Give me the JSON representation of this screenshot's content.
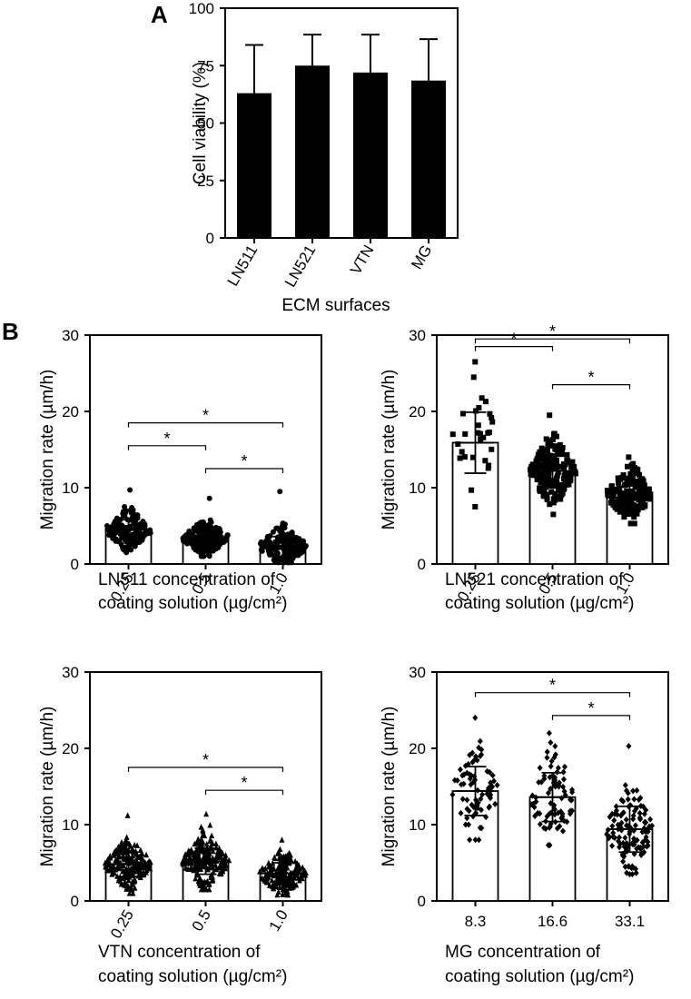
{
  "panel_labels": {
    "a": "A",
    "b": "B"
  },
  "chart_data": [
    {
      "id": "viability",
      "type": "bar",
      "title": "",
      "xlabel": "ECM surfaces",
      "ylabel": "Cell viability (%)",
      "ylim": [
        0,
        100
      ],
      "yticks": [
        "0",
        "25",
        "50",
        "75",
        "100"
      ],
      "categories": [
        "LN511",
        "LN521",
        "VTN",
        "MG"
      ],
      "values": [
        63,
        75,
        72,
        68.5
      ],
      "errors": [
        21,
        13.5,
        16.5,
        18
      ],
      "bar_color": "#000000",
      "grid": false
    },
    {
      "id": "ln511",
      "type": "scatter",
      "marker": "circle",
      "xlabel_lines": [
        "LN511 concentration of",
        "coating solution (µg/cm²)"
      ],
      "ylabel": "Migration rate (µm/h)",
      "ylim": [
        0,
        30
      ],
      "yticks": [
        "0",
        "10",
        "20",
        "30"
      ],
      "categories": [
        "0.25",
        "0.5",
        "1.0"
      ],
      "means": [
        4.5,
        3.4,
        2.3
      ],
      "sd": [
        1.3,
        1.1,
        1.3
      ],
      "spread": [
        [
          1.5,
          9.7
        ],
        [
          1.0,
          8.6
        ],
        [
          0.2,
          9.5
        ]
      ],
      "n_points": [
        170,
        200,
        170
      ],
      "significance": [
        {
          "from": 0,
          "to": 1,
          "y": 15.5,
          "label": "*"
        },
        {
          "from": 0,
          "to": 2,
          "y": 18.5,
          "label": "*"
        },
        {
          "from": 1,
          "to": 2,
          "y": 12.5,
          "label": "*"
        }
      ]
    },
    {
      "id": "ln521",
      "type": "scatter",
      "marker": "square",
      "xlabel_lines": [
        "LN521 concentration of",
        "coating solution (µg/cm²)"
      ],
      "ylabel": "Migration rate (µm/h)",
      "ylim": [
        0,
        30
      ],
      "yticks": [
        "0",
        "10",
        "20",
        "30"
      ],
      "categories": [
        "0.25",
        "0.5",
        "1.0"
      ],
      "means": [
        15.9,
        12.2,
        9.3
      ],
      "sd": [
        4.0,
        2.2,
        1.8
      ],
      "spread": [
        [
          7.5,
          26.5
        ],
        [
          6.5,
          19.5
        ],
        [
          5.3,
          14.0
        ]
      ],
      "n_points": [
        30,
        190,
        160
      ],
      "significance": [
        {
          "from": 0,
          "to": 1,
          "y": 28.5,
          "label": "*"
        },
        {
          "from": 0,
          "to": 2,
          "y": 29.5,
          "label": "*"
        },
        {
          "from": 1,
          "to": 2,
          "y": 23.5,
          "label": "*"
        }
      ]
    },
    {
      "id": "vtn",
      "type": "scatter",
      "marker": "triangle",
      "xlabel_lines": [
        "VTN concentration of",
        "coating solution (µg/cm²)"
      ],
      "ylabel": "Migration rate (µm/h)",
      "ylim": [
        0,
        30
      ],
      "yticks": [
        "0",
        "10",
        "20",
        "30"
      ],
      "categories": [
        "0.25",
        "0.5",
        "1.0"
      ],
      "means": [
        4.8,
        5.2,
        3.6
      ],
      "sd": [
        1.6,
        1.7,
        1.4
      ],
      "spread": [
        [
          1.0,
          11.2
        ],
        [
          1.5,
          11.4
        ],
        [
          0.8,
          8.0
        ]
      ],
      "n_points": [
        200,
        220,
        190
      ],
      "significance": [
        {
          "from": 0,
          "to": 2,
          "y": 17.5,
          "label": "*"
        },
        {
          "from": 1,
          "to": 2,
          "y": 14.5,
          "label": "*"
        }
      ]
    },
    {
      "id": "mg",
      "type": "scatter",
      "marker": "diamond",
      "xlabel_lines": [
        "MG concentration of",
        "coating solution (µg/cm²)"
      ],
      "ylabel": "Migration rate (µm/h)",
      "ylim": [
        0,
        30
      ],
      "yticks": [
        "0",
        "10",
        "20",
        "30"
      ],
      "categories": [
        "8.3",
        "16.6",
        "33.1"
      ],
      "means": [
        14.4,
        13.6,
        9.4
      ],
      "sd": [
        3.2,
        3.2,
        3.0
      ],
      "spread": [
        [
          8.0,
          24.0
        ],
        [
          7.3,
          22.0
        ],
        [
          3.5,
          20.3
        ]
      ],
      "n_points": [
        75,
        80,
        120
      ],
      "significance": [
        {
          "from": 0,
          "to": 2,
          "y": 27.3,
          "label": "*"
        },
        {
          "from": 1,
          "to": 2,
          "y": 24.3,
          "label": "*"
        }
      ]
    }
  ]
}
